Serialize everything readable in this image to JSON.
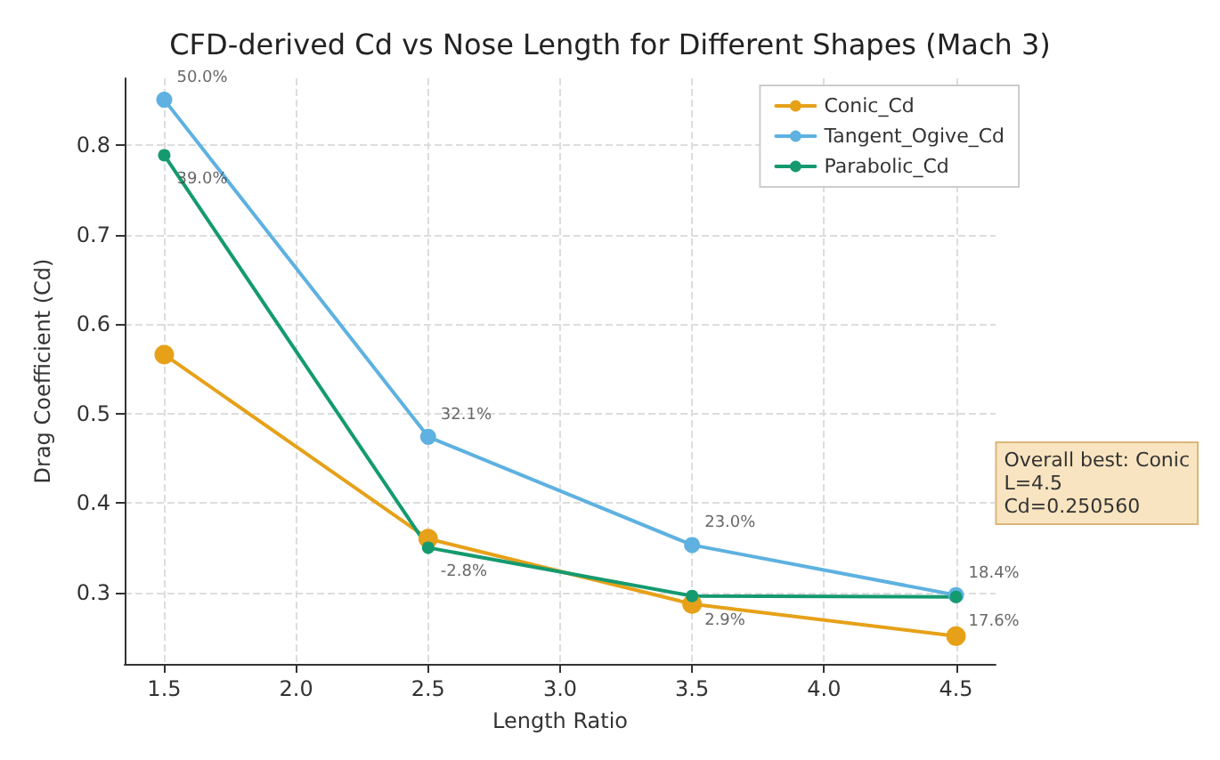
{
  "chart_data": {
    "type": "line",
    "title": "CFD-derived Cd vs Nose Length for Different Shapes (Mach 3)",
    "xlabel": "Length Ratio",
    "ylabel": "Drag Coefficient (Cd)",
    "x": [
      1.5,
      2.5,
      3.5,
      4.5
    ],
    "series": [
      {
        "name": "Conic_Cd",
        "color": "#e6a118",
        "values": [
          0.566,
          0.36,
          0.287,
          0.251
        ]
      },
      {
        "name": "Tangent_Ogive_Cd",
        "color": "#5eb1e0",
        "values": [
          0.851,
          0.474,
          0.353,
          0.297
        ]
      },
      {
        "name": "Parabolic_Cd",
        "color": "#159a70",
        "values": [
          0.789,
          0.35,
          0.296,
          0.295
        ]
      }
    ],
    "xlim": [
      1.35,
      4.65
    ],
    "xticks": [
      1.5,
      {
        "value": 2,
        "label": "2.0"
      },
      2.5,
      {
        "value": 3,
        "label": "3.0"
      },
      3.5,
      {
        "value": 4,
        "label": "4.0"
      },
      4.5
    ],
    "ylim": [
      0.22,
      0.875
    ],
    "yticks": [
      0.3,
      0.4,
      0.5,
      0.6,
      0.7,
      0.8
    ],
    "annotations": [
      {
        "text": "50.0%",
        "x": 1.5,
        "y": 0.851
      },
      {
        "text": "39.0%",
        "x": 1.5,
        "y": 0.789
      },
      {
        "text": "32.1%",
        "x": 2.5,
        "y": 0.474
      },
      {
        "text": "-2.8%",
        "x": 2.5,
        "y": 0.35
      },
      {
        "text": "23.0%",
        "x": 3.5,
        "y": 0.353
      },
      {
        "text": "2.9%",
        "x": 3.5,
        "y": 0.296
      },
      {
        "text": "18.4%",
        "x": 4.5,
        "y": 0.297
      },
      {
        "text": "17.6%",
        "x": 4.5,
        "y": 0.295
      },
      "Overall best: Conic\nL=4.5\nCd=0.250560"
    ],
    "grid": true,
    "legend": "top right",
    "marker": "circle",
    "line_style": "solid"
  }
}
